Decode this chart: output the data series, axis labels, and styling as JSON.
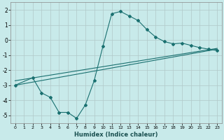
{
  "xlabel": "Humidex (Indice chaleur)",
  "bg_color": "#c8eaea",
  "grid_color": "#b0c8c8",
  "line_color": "#1a7070",
  "xlim": [
    -0.5,
    23.5
  ],
  "ylim": [
    -5.5,
    2.5
  ],
  "xticks": [
    0,
    1,
    2,
    3,
    4,
    5,
    6,
    7,
    8,
    9,
    10,
    11,
    12,
    13,
    14,
    15,
    16,
    17,
    18,
    19,
    20,
    21,
    22,
    23
  ],
  "yticks": [
    -5,
    -4,
    -3,
    -2,
    -1,
    0,
    1,
    2
  ],
  "curve1_x": [
    0,
    2,
    3,
    4,
    5,
    6,
    7,
    8,
    9,
    10,
    11,
    12,
    13,
    14,
    15,
    16,
    17,
    18,
    19,
    20,
    21,
    22,
    23
  ],
  "curve1_y": [
    -3.0,
    -2.5,
    -3.5,
    -3.8,
    -4.8,
    -4.8,
    -5.2,
    -4.3,
    -2.7,
    -0.4,
    1.75,
    1.9,
    1.6,
    1.3,
    0.7,
    0.2,
    -0.1,
    -0.25,
    -0.2,
    -0.35,
    -0.5,
    -0.6,
    -0.7
  ],
  "line1_x": [
    0,
    23
  ],
  "line1_y": [
    -3.0,
    -0.6
  ],
  "line2_x": [
    0,
    23
  ],
  "line2_y": [
    -2.7,
    -0.55
  ],
  "line3_x": [
    0,
    10,
    23
  ],
  "line3_y": [
    -3.0,
    -1.5,
    -0.5
  ]
}
